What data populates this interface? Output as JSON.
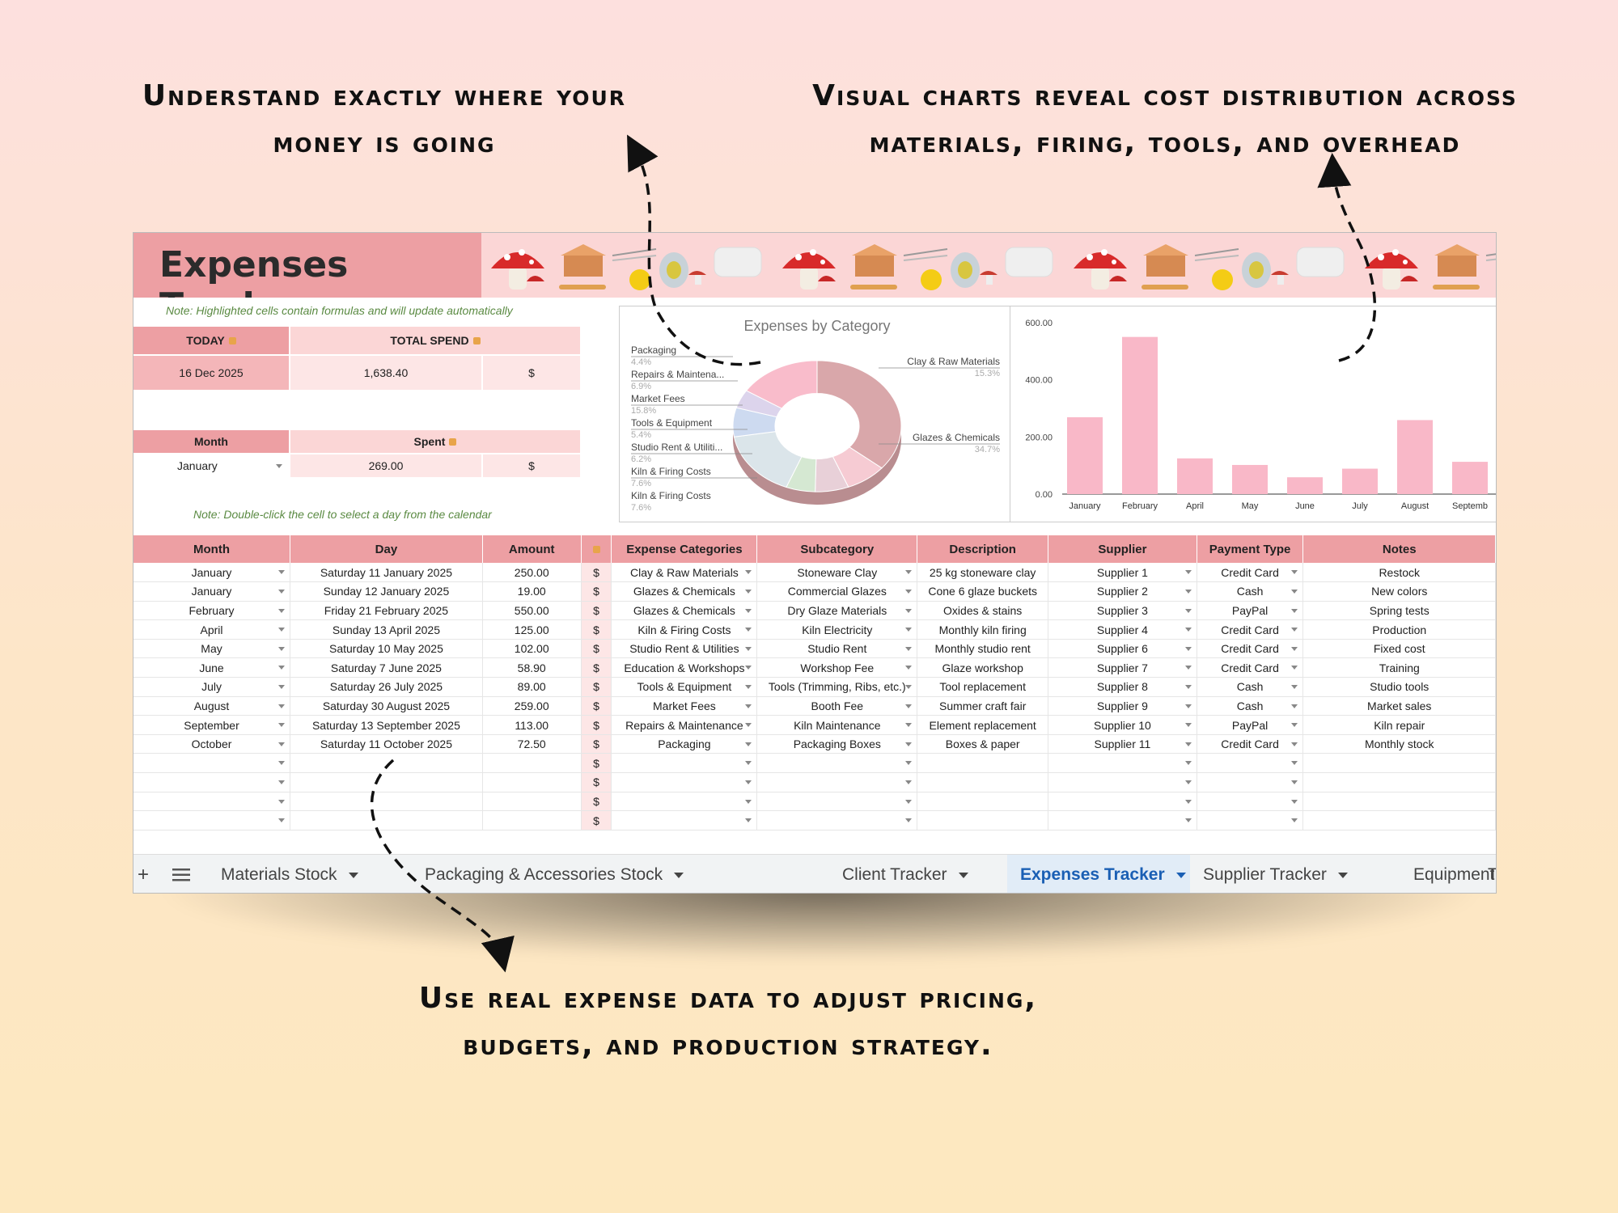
{
  "captions": {
    "top_left": "Understand exactly where your money is going",
    "top_right": "Visual charts reveal cost distribution across materials, firing, tools, and overhead",
    "bottom": "Use real expense data to adjust pricing, budgets, and production strategy."
  },
  "sheet": {
    "title": "Expenses Tracker",
    "note_formulas": "Note: Highlighted cells contain formulas and will update automatically",
    "note_calendar": "Note: Double-click the cell to select a day from the calendar",
    "today_label": "TODAY",
    "today_value": "16 Dec 2025",
    "total_spend_label": "TOTAL SPEND",
    "total_spend_value": "1,638.40",
    "currency": "$",
    "month_label": "Month",
    "month_value": "January",
    "spent_label": "Spent",
    "spent_value": "269.00"
  },
  "table": {
    "headers": [
      "Month",
      "Day",
      "Amount",
      "",
      "Expense Categories",
      "Subcategory",
      "Description",
      "Supplier",
      "Payment Type",
      "Notes"
    ],
    "rows": [
      [
        "January",
        "Saturday 11 January 2025",
        "250.00",
        "$",
        "Clay & Raw Materials",
        "Stoneware Clay",
        "25 kg stoneware clay",
        "Supplier 1",
        "Credit Card",
        "Restock"
      ],
      [
        "January",
        "Sunday 12 January 2025",
        "19.00",
        "$",
        "Glazes & Chemicals",
        "Commercial Glazes",
        "Cone 6 glaze buckets",
        "Supplier 2",
        "Cash",
        "New colors"
      ],
      [
        "February",
        "Friday 21 February 2025",
        "550.00",
        "$",
        "Glazes & Chemicals",
        "Dry Glaze Materials",
        "Oxides & stains",
        "Supplier 3",
        "PayPal",
        "Spring tests"
      ],
      [
        "April",
        "Sunday 13 April 2025",
        "125.00",
        "$",
        "Kiln & Firing Costs",
        "Kiln Electricity",
        "Monthly kiln firing",
        "Supplier 4",
        "Credit Card",
        "Production"
      ],
      [
        "May",
        "Saturday 10 May 2025",
        "102.00",
        "$",
        "Studio Rent & Utilities",
        "Studio Rent",
        "Monthly studio rent",
        "Supplier 6",
        "Credit Card",
        "Fixed cost"
      ],
      [
        "June",
        "Saturday 7 June 2025",
        "58.90",
        "$",
        "Education & Workshops",
        "Workshop Fee",
        "Glaze workshop",
        "Supplier 7",
        "Credit Card",
        "Training"
      ],
      [
        "July",
        "Saturday 26 July 2025",
        "89.00",
        "$",
        "Tools & Equipment",
        "Tools (Trimming, Ribs, etc.)",
        "Tool replacement",
        "Supplier 8",
        "Cash",
        "Studio tools"
      ],
      [
        "August",
        "Saturday 30 August 2025",
        "259.00",
        "$",
        "Market Fees",
        "Booth Fee",
        "Summer craft fair",
        "Supplier 9",
        "Cash",
        "Market sales"
      ],
      [
        "September",
        "Saturday 13 September 2025",
        "113.00",
        "$",
        "Repairs & Maintenance",
        "Kiln Maintenance",
        "Element replacement",
        "Supplier 10",
        "PayPal",
        "Kiln repair"
      ],
      [
        "October",
        "Saturday 11 October 2025",
        "72.50",
        "$",
        "Packaging",
        "Packaging Boxes",
        "Boxes & paper",
        "Supplier 11",
        "Credit Card",
        "Monthly stock"
      ],
      [
        "",
        "",
        "",
        "$",
        "",
        "",
        "",
        "",
        "",
        ""
      ],
      [
        "",
        "",
        "",
        "$",
        "",
        "",
        "",
        "",
        "",
        ""
      ],
      [
        "",
        "",
        "",
        "$",
        "",
        "",
        "",
        "",
        "",
        ""
      ],
      [
        "",
        "",
        "",
        "$",
        "",
        "",
        "",
        "",
        "",
        ""
      ]
    ]
  },
  "tabs": [
    {
      "label": "Materials Stock"
    },
    {
      "label": "Packaging & Accessories Stock"
    },
    {
      "label": "Client Tracker"
    },
    {
      "label": "Expenses Tracker",
      "active": true
    },
    {
      "label": "Supplier Tracker"
    },
    {
      "label": "Equipment Tracker"
    },
    {
      "label": "To"
    }
  ],
  "colors": {
    "accent": "#ed9fa3",
    "header_light": "#fbd6d6",
    "active_tab": "#1a5fb4",
    "bar": "#f9b8c8"
  },
  "icons": [
    "add-sheet-icon",
    "all-sheets-menu-icon",
    "lock-icon",
    "dropdown-caret-icon",
    "mushroom-icon",
    "toolbox-icon",
    "clay-tool-icon",
    "glaze-jar-icon",
    "clay-block-icon"
  ],
  "chart_data": [
    {
      "type": "pie",
      "title": "Expenses by Category",
      "donut": true,
      "slices": [
        {
          "label": "Glazes & Chemicals",
          "value": 34.7,
          "pct": "34.7%",
          "color": "#d9a7aa"
        },
        {
          "label": "Kiln & Firing Costs",
          "value": 7.6,
          "pct": "7.6%",
          "color": "#f6cbd3"
        },
        {
          "label": "Studio Rent & Utiliti...",
          "value": 6.2,
          "pct": "6.2%",
          "color": "#e8d0d8"
        },
        {
          "label": "Tools & Equipment",
          "value": 5.4,
          "pct": "5.4%",
          "color": "#d5e8d2"
        },
        {
          "label": "Market Fees",
          "value": 15.8,
          "pct": "15.8%",
          "color": "#dbe5ea"
        },
        {
          "label": "Repairs & Maintena...",
          "value": 6.9,
          "pct": "6.9%",
          "color": "#cddaf0"
        },
        {
          "label": "Packaging",
          "value": 4.4,
          "pct": "4.4%",
          "color": "#dcd4ec"
        },
        {
          "label": "Clay & Raw Materials",
          "value": 15.3,
          "pct": "15.3%",
          "color": "#f9bccb"
        }
      ]
    },
    {
      "type": "bar",
      "categories": [
        "January",
        "February",
        "April",
        "May",
        "June",
        "July",
        "August",
        "Septemb"
      ],
      "values": [
        269.0,
        550.0,
        125.0,
        102.0,
        58.9,
        89.0,
        259.0,
        113.0
      ],
      "ylim": [
        0,
        600
      ],
      "yticks": [
        "0.00",
        "200.00",
        "400.00",
        "600.00"
      ],
      "grid": false
    }
  ]
}
